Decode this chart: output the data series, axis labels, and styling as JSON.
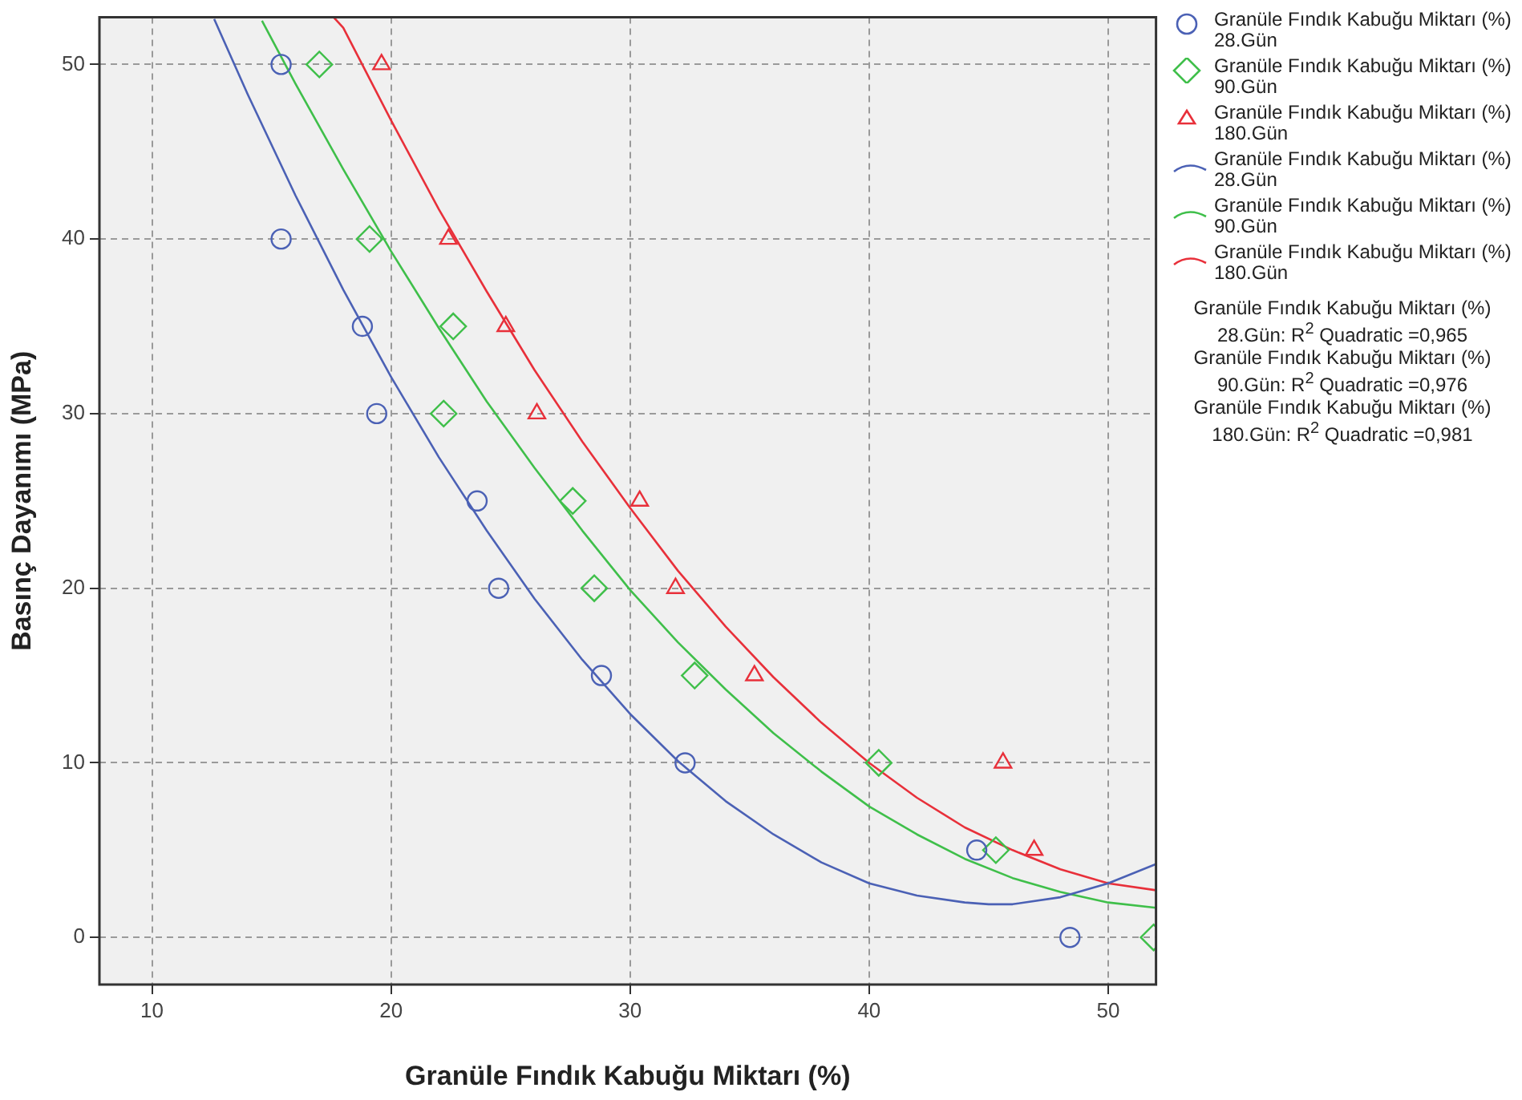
{
  "chart_data": {
    "type": "scatter",
    "xlabel": "Granüle Fındık Kabuğu Miktarı (%)",
    "ylabel": "Basınç Dayanımı (MPa)",
    "xlim": [
      7.8,
      52
    ],
    "ylim": [
      -2.7,
      52.7
    ],
    "xticks": [
      10,
      20,
      30,
      40,
      50
    ],
    "yticks": [
      0,
      10,
      20,
      30,
      40,
      50
    ],
    "grid": true,
    "legend": "right",
    "series": [
      {
        "name": "Granüle Fındık Kabuğu Miktarı (%) 28.Gün",
        "marker": "circle",
        "color": "#4b61b5",
        "x": [
          15.4,
          15.4,
          18.8,
          19.4,
          23.6,
          24.5,
          28.8,
          32.3,
          44.5,
          48.4
        ],
        "values": [
          50,
          40,
          35,
          30,
          25,
          20,
          15,
          10,
          5,
          0
        ]
      },
      {
        "name": "Granüle Fındık Kabuğu Miktarı (%) 90.Gün",
        "marker": "diamond",
        "color": "#3fbf4a",
        "x": [
          17.0,
          19.1,
          22.6,
          22.2,
          27.6,
          28.5,
          32.7,
          40.4,
          45.3,
          51.9
        ],
        "values": [
          50,
          40,
          35,
          30,
          25,
          20,
          15,
          10,
          5,
          0
        ]
      },
      {
        "name": "Granüle Fındık Kabuğu Miktarı (%) 180.Gün",
        "marker": "triangle",
        "color": "#e8303a",
        "x": [
          19.6,
          22.4,
          24.8,
          26.1,
          30.4,
          31.9,
          35.2,
          45.6,
          46.9
        ],
        "values": [
          50,
          40,
          35,
          30,
          25,
          20,
          15,
          10,
          5
        ]
      },
      {
        "name": "Granüle Fındık Kabuğu Miktarı (%) 28.Gün",
        "type": "line",
        "marker": "none",
        "color": "#4b61b5",
        "x": [
          12.6,
          14,
          16,
          18,
          20,
          22,
          24,
          26,
          28,
          30,
          32,
          34,
          36,
          38,
          40,
          42,
          44,
          45,
          46,
          48,
          50,
          52
        ],
        "values": [
          52.6,
          48.3,
          42.5,
          37.1,
          32.1,
          27.5,
          23.3,
          19.4,
          15.9,
          12.8,
          10.1,
          7.8,
          5.9,
          4.3,
          3.1,
          2.4,
          2.0,
          1.9,
          1.9,
          2.3,
          3.1,
          4.2
        ]
      },
      {
        "name": "Granüle Fındık Kabuğu Miktarı (%) 90.Gün",
        "type": "line",
        "marker": "none",
        "color": "#3fbf4a",
        "x": [
          14.6,
          16,
          18,
          20,
          22,
          24,
          26,
          28,
          30,
          32,
          34,
          36,
          38,
          40,
          42,
          44,
          46,
          48,
          50,
          52
        ],
        "values": [
          52.5,
          48.9,
          44.0,
          39.3,
          34.9,
          30.7,
          26.9,
          23.3,
          19.9,
          16.9,
          14.2,
          11.7,
          9.5,
          7.5,
          5.9,
          4.5,
          3.4,
          2.6,
          2.0,
          1.7
        ]
      },
      {
        "name": "Granüle Fındık Kabuğu Miktarı (%) 180.Gün",
        "type": "line",
        "marker": "none",
        "color": "#e8303a",
        "x": [
          17.6,
          18,
          20,
          22,
          24,
          26,
          28,
          30,
          32,
          34,
          36,
          38,
          40,
          42,
          44,
          46,
          48,
          50,
          52
        ],
        "values": [
          52.7,
          52.1,
          46.8,
          41.7,
          37.0,
          32.5,
          28.4,
          24.6,
          21.0,
          17.8,
          14.9,
          12.3,
          10.0,
          8.0,
          6.3,
          5.0,
          3.9,
          3.1,
          2.7
        ]
      }
    ],
    "annotations": [
      "Granüle Fındık Kabuğu Miktarı (%) 28.Gün: R$^{2}$ Quadratic =0,965",
      "Granüle Fındık Kabuğu Miktarı (%) 90.Gün: R$^{2}$ Quadratic =0,976",
      "Granüle Fındık Kabuğu Miktarı (%) 180.Gün: R$^{2}$ Quadratic =0,981"
    ]
  }
}
